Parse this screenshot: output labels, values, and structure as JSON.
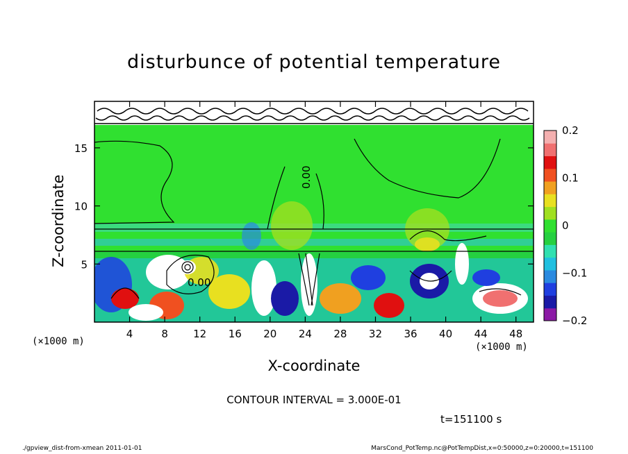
{
  "chart_data": {
    "type": "heatmap",
    "title": "disturbunce of potential temperature",
    "xlabel": "X-coordinate",
    "ylabel": "Z-coordinate",
    "x_unit": "(×1000 m)",
    "z_unit": "(×1000 m)",
    "xlim": [
      0,
      50
    ],
    "ylim": [
      0,
      19
    ],
    "x_ticks": [
      "4",
      "8",
      "12",
      "16",
      "20",
      "24",
      "28",
      "32",
      "36",
      "40",
      "44",
      "48"
    ],
    "x_tick_values": [
      4,
      8,
      12,
      16,
      20,
      24,
      28,
      32,
      36,
      40,
      44,
      48
    ],
    "y_ticks": [
      "5",
      "10",
      "15"
    ],
    "y_tick_values": [
      5,
      10,
      15
    ],
    "colorbar": {
      "min": -0.2,
      "max": 0.2,
      "tick_labels": [
        "0.2",
        "0.1",
        "0",
        "−0.1",
        "−0.2"
      ],
      "tick_values": [
        0.2,
        0.1,
        0,
        -0.1,
        -0.2
      ],
      "colors": [
        "#8c1aa6",
        "#1a1aa6",
        "#1f3fe0",
        "#2a8ae0",
        "#20c0e0",
        "#30e0b0",
        "#25d040",
        "#30e030",
        "#a0e020",
        "#e8e020",
        "#f0a020",
        "#f05020",
        "#e01010",
        "#f07070",
        "#f4b0b0"
      ]
    },
    "contour_labels": [
      "0.00",
      "0.00"
    ],
    "field_summary": [
      {
        "region": "z > 18",
        "value": "noisy near zero"
      },
      {
        "region": "z 7-18",
        "value": "near 0, small positive plumes near x=22, 38"
      },
      {
        "region": "z < 6.5",
        "value": "mixed layer, values -0.2 to 0.2"
      }
    ]
  },
  "annotations": {
    "contour_interval": "CONTOUR INTERVAL = 3.000E-01",
    "time": "t=151100 s",
    "footer_left": "./gpview_dist-from-xmean  2011-01-01",
    "footer_right": "MarsCond_PotTemp.nc@PotTempDist,x=0:50000,z=0:20000,t=151100"
  }
}
